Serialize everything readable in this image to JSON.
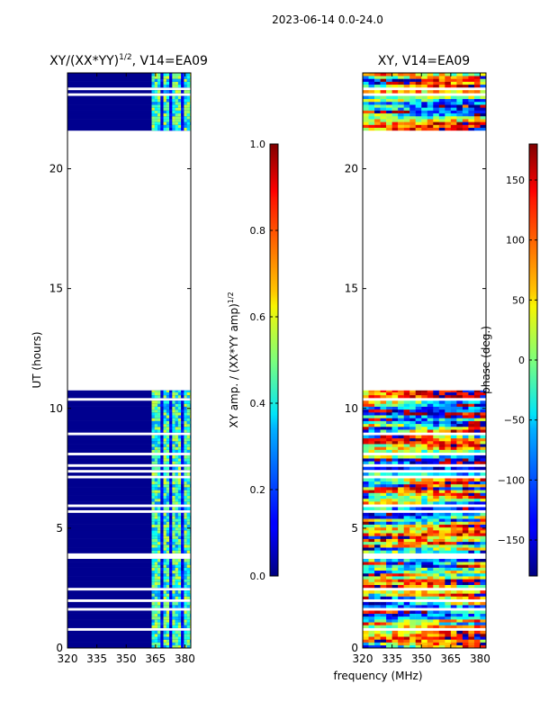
{
  "figure": {
    "suptitle": "2023-06-14 0.0-24.0",
    "xlabel": "frequency (MHz)",
    "ylabel": "UT (hours)"
  },
  "chart_data": [
    {
      "type": "heatmap",
      "title_main": "XY/(XX*YY)",
      "title_sup": "1/2",
      "title_tail": ", V14=EA09",
      "x_ticks": [
        320,
        335,
        350,
        365,
        380
      ],
      "xlim": [
        320,
        383
      ],
      "y_ticks": [
        0,
        5,
        10,
        15,
        20
      ],
      "ylim": [
        0,
        24
      ],
      "data_blocks_ut": [
        [
          0,
          10.75
        ],
        [
          21.6,
          24.0
        ]
      ],
      "colorscale": "jet",
      "colorbar": {
        "label_main": "XY amp. / (XX*YY amp)",
        "label_sup": "1/2",
        "range": [
          0.0,
          1.0
        ],
        "ticks": [
          0.0,
          0.2,
          0.4,
          0.6,
          0.8,
          1.0
        ],
        "tick_labels": [
          "0.0",
          "0.2",
          "0.4",
          "0.6",
          "0.8",
          "1.0"
        ]
      }
    },
    {
      "type": "heatmap",
      "title_main": "XY, V14=EA09",
      "x_ticks": [
        320,
        335,
        350,
        365,
        380
      ],
      "xlim": [
        320,
        383
      ],
      "y_ticks": [
        0,
        5,
        10,
        15,
        20
      ],
      "ylim": [
        0,
        24
      ],
      "data_blocks_ut": [
        [
          0,
          10.75
        ],
        [
          21.6,
          24.0
        ]
      ],
      "colorscale": "jet",
      "colorbar": {
        "label_main": "phase (deg.)",
        "range": [
          -180,
          180
        ],
        "ticks": [
          -150,
          -100,
          -50,
          0,
          50,
          100,
          150
        ],
        "tick_labels": [
          "−150",
          "−100",
          "−50",
          "0",
          "50",
          "100",
          "150"
        ]
      }
    }
  ]
}
